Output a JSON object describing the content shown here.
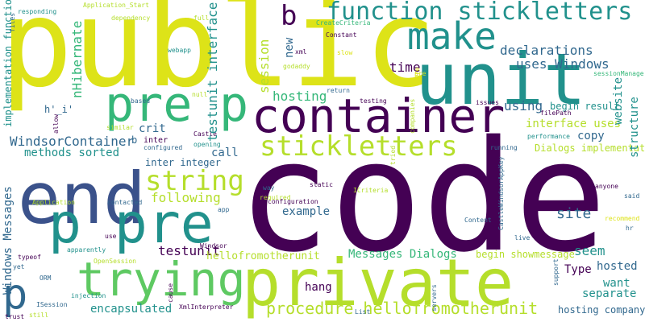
{
  "palette": {
    "deep_purple": "#440154",
    "dark_blue": "#3b528b",
    "teal_blue": "#31688e",
    "teal": "#21918c",
    "green": "#35b779",
    "light_green": "#5ec962",
    "lime": "#b5de2b",
    "yellow": "#dde318"
  },
  "words": [
    {
      "text": "code",
      "color": "#440154",
      "rotated": false
    },
    {
      "text": "public",
      "color": "#dde318",
      "rotated": false
    },
    {
      "text": "private",
      "color": "#b5de2b",
      "rotated": false
    },
    {
      "text": "unit",
      "color": "#21918c",
      "rotated": false
    },
    {
      "text": "end",
      "color": "#3b528b",
      "rotated": false
    },
    {
      "text": "container",
      "color": "#440154",
      "rotated": false
    },
    {
      "text": "p pre",
      "color": "#21918c",
      "rotated": false
    },
    {
      "text": "p",
      "color": "#35b779",
      "rotated": false
    },
    {
      "text": "pre",
      "color": "#35b779",
      "rotated": false
    },
    {
      "text": "make",
      "color": "#21918c",
      "rotated": false
    },
    {
      "text": "function stickletters",
      "color": "#21918c",
      "rotated": false
    },
    {
      "text": "trying",
      "color": "#5ec962",
      "rotated": false
    },
    {
      "text": "stickletters",
      "color": "#b5de2b",
      "rotated": false
    },
    {
      "text": "string",
      "color": "#b5de2b",
      "rotated": false
    },
    {
      "text": "b",
      "color": "#440154",
      "rotated": false
    },
    {
      "text": "p",
      "color": "#31688e",
      "rotated": false
    },
    {
      "text": "procedure hellofromotherunit",
      "color": "#b5de2b",
      "rotated": false
    },
    {
      "text": "declarations",
      "color": "#31688e",
      "rotated": false
    },
    {
      "text": "uses Windows",
      "color": "#31688e",
      "rotated": false
    },
    {
      "text": "time",
      "color": "#440154",
      "rotated": false
    },
    {
      "text": "hosting",
      "color": "#35b779",
      "rotated": false
    },
    {
      "text": "using",
      "color": "#31688e",
      "rotated": false
    },
    {
      "text": "begin result",
      "color": "#21918c",
      "rotated": false
    },
    {
      "text": "interface uses",
      "color": "#b5de2b",
      "rotated": false
    },
    {
      "text": "copy",
      "color": "#31688e",
      "rotated": false
    },
    {
      "text": "Dialogs implementation",
      "color": "#b5de2b",
      "rotated": false
    },
    {
      "text": "WindsorContainer",
      "color": "#31688e",
      "rotated": false
    },
    {
      "text": "methods sorted",
      "color": "#21918c",
      "rotated": false
    },
    {
      "text": "crit",
      "color": "#31688e",
      "rotated": false
    },
    {
      "text": "call",
      "color": "#31688e",
      "rotated": false
    },
    {
      "text": "inter integer",
      "color": "#31688e",
      "rotated": false
    },
    {
      "text": "following",
      "color": "#b5de2b",
      "rotated": false
    },
    {
      "text": "example",
      "color": "#31688e",
      "rotated": false
    },
    {
      "text": "site",
      "color": "#31688e",
      "rotated": false
    },
    {
      "text": "seem",
      "color": "#21918c",
      "rotated": false
    },
    {
      "text": "hosted",
      "color": "#31688e",
      "rotated": false
    },
    {
      "text": "want",
      "color": "#21918c",
      "rotated": false
    },
    {
      "text": "separate",
      "color": "#21918c",
      "rotated": false
    },
    {
      "text": "Type",
      "color": "#440154",
      "rotated": false
    },
    {
      "text": "testunit",
      "color": "#440154",
      "rotated": false
    },
    {
      "text": "hellofromotherunit",
      "color": "#b5de2b",
      "rotated": false
    },
    {
      "text": "Messages Dialogs",
      "color": "#35b779",
      "rotated": false
    },
    {
      "text": "begin showmessage",
      "color": "#b5de2b",
      "rotated": false
    },
    {
      "text": "hang",
      "color": "#440154",
      "rotated": false
    },
    {
      "text": "encapsulated",
      "color": "#21918c",
      "rotated": false
    },
    {
      "text": "hosting company",
      "color": "#31688e",
      "rotated": false
    },
    {
      "text": "h'_i'",
      "color": "#31688e",
      "rotated": false
    },
    {
      "text": "b",
      "color": "#31688e",
      "rotated": false
    },
    {
      "text": "inter",
      "color": "#440154",
      "rotated": false
    },
    {
      "text": "Castle",
      "color": "#440154",
      "rotated": false
    },
    {
      "text": "configured",
      "color": "#31688e",
      "rotated": false
    },
    {
      "text": "opening",
      "color": "#21918c",
      "rotated": false
    },
    {
      "text": "performance",
      "color": "#21918c",
      "rotated": false
    },
    {
      "text": "running",
      "color": "#31688e",
      "rotated": false
    },
    {
      "text": "filePath",
      "color": "#440154",
      "rotated": false
    },
    {
      "text": "issues",
      "color": "#440154",
      "rotated": false
    },
    {
      "text": "testing",
      "color": "#440154",
      "rotated": false
    },
    {
      "text": "return",
      "color": "#31688e",
      "rotated": false
    },
    {
      "text": "based",
      "color": "#31688e",
      "rotated": false
    },
    {
      "text": "similar",
      "color": "#b5de2b",
      "rotated": false
    },
    {
      "text": "null",
      "color": "#b5de2b",
      "rotated": false
    },
    {
      "text": "webapp",
      "color": "#21918c",
      "rotated": false
    },
    {
      "text": "dependency",
      "color": "#b5de2b",
      "rotated": false
    },
    {
      "text": "Application_Start",
      "color": "#b5de2b",
      "rotated": false
    },
    {
      "text": "responding",
      "color": "#21918c",
      "rotated": false
    },
    {
      "text": "full",
      "color": "#b5de2b",
      "rotated": false
    },
    {
      "text": "CreateCriteria",
      "color": "#35b779",
      "rotated": false
    },
    {
      "text": "Constant",
      "color": "#440154",
      "rotated": false
    },
    {
      "text": "xml",
      "color": "#440154",
      "rotated": false
    },
    {
      "text": "godaddy",
      "color": "#b5de2b",
      "rotated": false
    },
    {
      "text": "slow",
      "color": "#dde318",
      "rotated": false
    },
    {
      "text": "sessionManager",
      "color": "#35b779",
      "rotated": false
    },
    {
      "text": "pre",
      "color": "#dde318",
      "rotated": false
    },
    {
      "text": "configuration",
      "color": "#440154",
      "rotated": false
    },
    {
      "text": "way",
      "color": "#31688e",
      "rotated": false
    },
    {
      "text": "required",
      "color": "#b5de2b",
      "rotated": false
    },
    {
      "text": "static",
      "color": "#440154",
      "rotated": false
    },
    {
      "text": "ICriteria",
      "color": "#b5de2b",
      "rotated": false
    },
    {
      "text": "Content",
      "color": "#31688e",
      "rotated": false
    },
    {
      "text": "live",
      "color": "#31688e",
      "rotated": false
    },
    {
      "text": "anyone",
      "color": "#440154",
      "rotated": false
    },
    {
      "text": "said",
      "color": "#31688e",
      "rotated": false
    },
    {
      "text": "recommend",
      "color": "#dde318",
      "rotated": false
    },
    {
      "text": "hr",
      "color": "#31688e",
      "rotated": false
    },
    {
      "text": "Application",
      "color": "#b5de2b",
      "rotated": false
    },
    {
      "text": "contacted",
      "color": "#31688e",
      "rotated": false
    },
    {
      "text": "app",
      "color": "#31688e",
      "rotated": false
    },
    {
      "text": "use",
      "color": "#440154",
      "rotated": false
    },
    {
      "text": "apparently",
      "color": "#21918c",
      "rotated": false
    },
    {
      "text": "Windsor",
      "color": "#440154",
      "rotated": false
    },
    {
      "text": "OpenSession",
      "color": "#b5de2b",
      "rotated": false
    },
    {
      "text": "ORM",
      "color": "#31688e",
      "rotated": false
    },
    {
      "text": "typeof",
      "color": "#440154",
      "rotated": false
    },
    {
      "text": "yet",
      "color": "#31688e",
      "rotated": false
    },
    {
      "text": "injection",
      "color": "#21918c",
      "rotated": false
    },
    {
      "text": "ISession",
      "color": "#31688e",
      "rotated": false
    },
    {
      "text": "still",
      "color": "#b5de2b",
      "rotated": false
    },
    {
      "text": "trust",
      "color": "#440154",
      "rotated": false
    },
    {
      "text": "XmlInterpreter",
      "color": "#440154",
      "rotated": false
    },
    {
      "text": "List",
      "color": "#31688e",
      "rotated": false
    },
    {
      "text": "implementation function",
      "color": "#21918c",
      "rotated": true
    },
    {
      "text": "nHibernate",
      "color": "#35b779",
      "rotated": true
    },
    {
      "text": "files",
      "color": "#31688e",
      "rotated": true
    },
    {
      "text": "testunit interface",
      "color": "#21918c",
      "rotated": true
    },
    {
      "text": "session",
      "color": "#b5de2b",
      "rotated": true
    },
    {
      "text": "new",
      "color": "#31688e",
      "rotated": true
    },
    {
      "text": "website",
      "color": "#21918c",
      "rotated": true
    },
    {
      "text": "structure",
      "color": "#21918c",
      "rotated": true
    },
    {
      "text": "Windows Messages",
      "color": "#31688e",
      "rotated": true
    },
    {
      "text": "allow",
      "color": "#440154",
      "rotated": true
    },
    {
      "text": "companies",
      "color": "#b5de2b",
      "rotated": true
    },
    {
      "text": "tried",
      "color": "#b5de2b",
      "rotated": true
    },
    {
      "text": "CastleWindsorAppKey",
      "color": "#31688e",
      "rotated": true
    },
    {
      "text": "support",
      "color": "#31688e",
      "rotated": true
    },
    {
      "text": "servers",
      "color": "#31688e",
      "rotated": true
    },
    {
      "text": "cause",
      "color": "#440154",
      "rotated": true
    },
    {
      "text": "pre",
      "color": "#dde318",
      "rotated": true
    }
  ]
}
